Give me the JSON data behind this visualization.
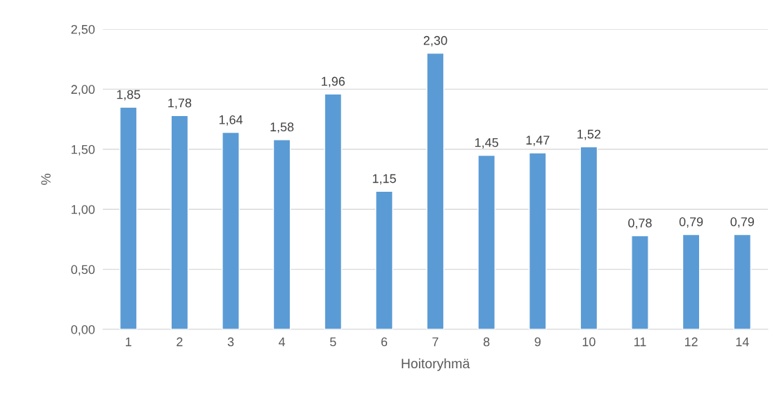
{
  "chart_data": {
    "type": "bar",
    "xlabel": "Hoitoryhmä",
    "ylabel": "%",
    "categories": [
      "1",
      "2",
      "3",
      "4",
      "5",
      "6",
      "7",
      "8",
      "9",
      "10",
      "11",
      "12",
      "14"
    ],
    "values": [
      1.85,
      1.78,
      1.64,
      1.58,
      1.96,
      1.15,
      2.3,
      1.45,
      1.47,
      1.52,
      0.78,
      0.79,
      0.79
    ],
    "value_labels": [
      "1,85",
      "1,78",
      "1,64",
      "1,58",
      "1,96",
      "1,15",
      "2,30",
      "1,45",
      "1,47",
      "1,52",
      "0,78",
      "0,79",
      "0,79"
    ],
    "color": "#5b9bd5",
    "ylim": [
      0,
      2.5
    ],
    "yticks": [
      {
        "value": 0,
        "label": "0,00"
      },
      {
        "value": 0.5,
        "label": "0,50"
      },
      {
        "value": 1,
        "label": "1,00"
      },
      {
        "value": 1.5,
        "label": "1,50"
      },
      {
        "value": 2,
        "label": "2,00"
      },
      {
        "value": 2.5,
        "label": "2,50"
      }
    ],
    "grid": "y",
    "legend": false
  }
}
